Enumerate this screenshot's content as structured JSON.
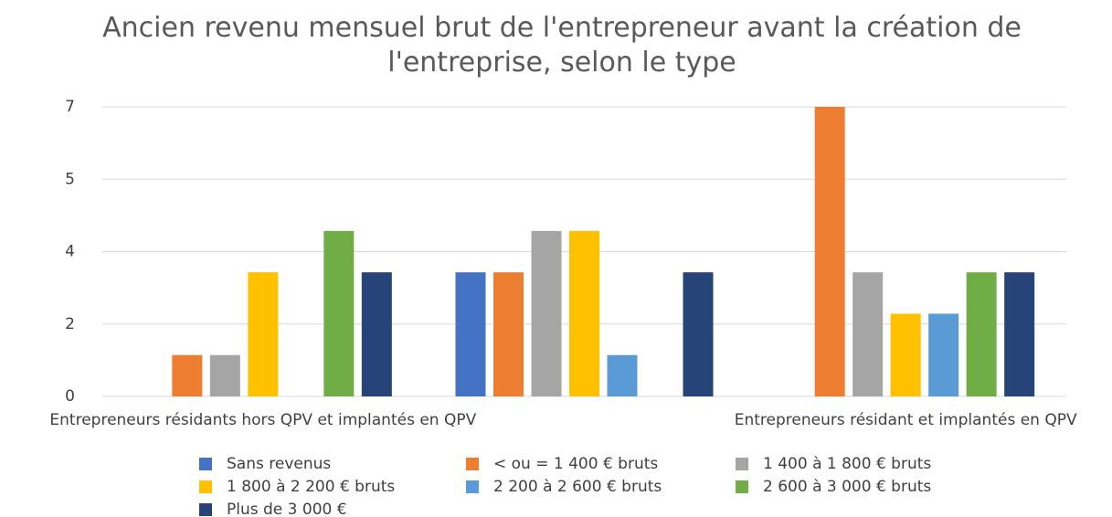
{
  "chart_data": {
    "type": "bar",
    "title": "Ancien revenu mensuel brut de l'entrepreneur avant la création de l'entreprise, selon le type",
    "categories": [
      "Entrepreneurs résidants hors QPV et implantés en QPV",
      null,
      "Entrepreneurs résidant et implantés en QPV"
    ],
    "series": [
      {
        "name": "Sans revenus",
        "color": "#4472c4",
        "values": [
          0,
          3,
          0
        ]
      },
      {
        "name": "< ou = 1 400 € bruts",
        "color": "#ed7d31",
        "values": [
          1,
          3,
          7
        ]
      },
      {
        "name": "1 400 à 1 800 € bruts",
        "color": "#a5a5a5",
        "values": [
          1,
          4,
          3
        ]
      },
      {
        "name": "1 800 à 2 200 € bruts",
        "color": "#ffc000",
        "values": [
          3,
          4,
          2
        ]
      },
      {
        "name": "2 200 à 2 600 € bruts",
        "color": "#5b9bd5",
        "values": [
          0,
          1,
          2
        ]
      },
      {
        "name": "2 600 à 3 000 € bruts",
        "color": "#70ad47",
        "values": [
          4,
          0,
          3
        ]
      },
      {
        "name": "Plus de 3 000 €",
        "color": "#264478",
        "values": [
          3,
          3,
          3
        ]
      }
    ],
    "ylim": [
      0,
      7
    ],
    "yticks": [
      0,
      {
        "value": 1.75,
        "label": "2"
      },
      {
        "value": 3.5,
        "label": "4"
      },
      {
        "value": 5.25,
        "label": "5"
      },
      7
    ],
    "grid": true,
    "legend": "bottom"
  }
}
